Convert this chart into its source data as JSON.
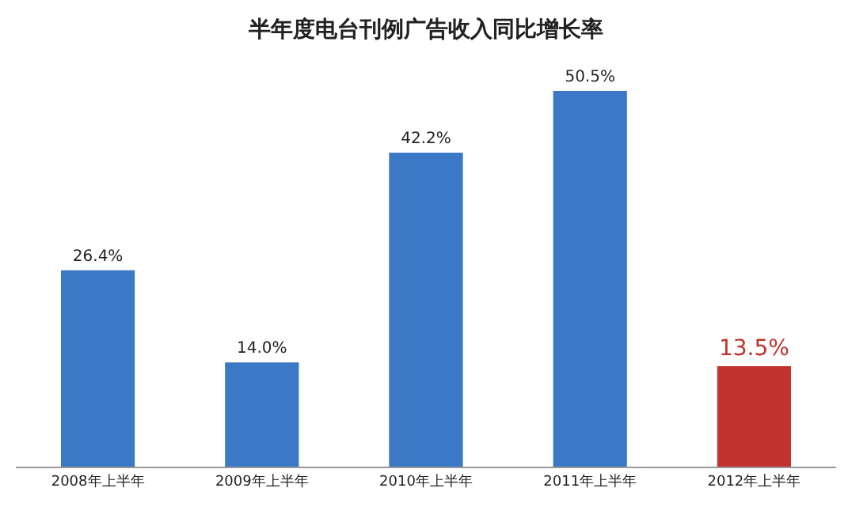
{
  "chart_data": {
    "type": "bar",
    "title": "半年度电台刊例广告收入同比增长率",
    "categories": [
      "2008年上半年",
      "2009年上半年",
      "2010年上半年",
      "2011年上半年",
      "2012年上半年"
    ],
    "values": [
      26.4,
      14.0,
      42.2,
      50.5,
      13.5
    ],
    "colors": [
      "#3b78c6",
      "#3b78c6",
      "#3b78c6",
      "#3b78c6",
      "#c0332e"
    ],
    "value_labels": [
      "26.4%",
      "14.0%",
      "42.2%",
      "50.5%",
      "13.5%"
    ],
    "tick_labels": "x",
    "legend": false
  }
}
